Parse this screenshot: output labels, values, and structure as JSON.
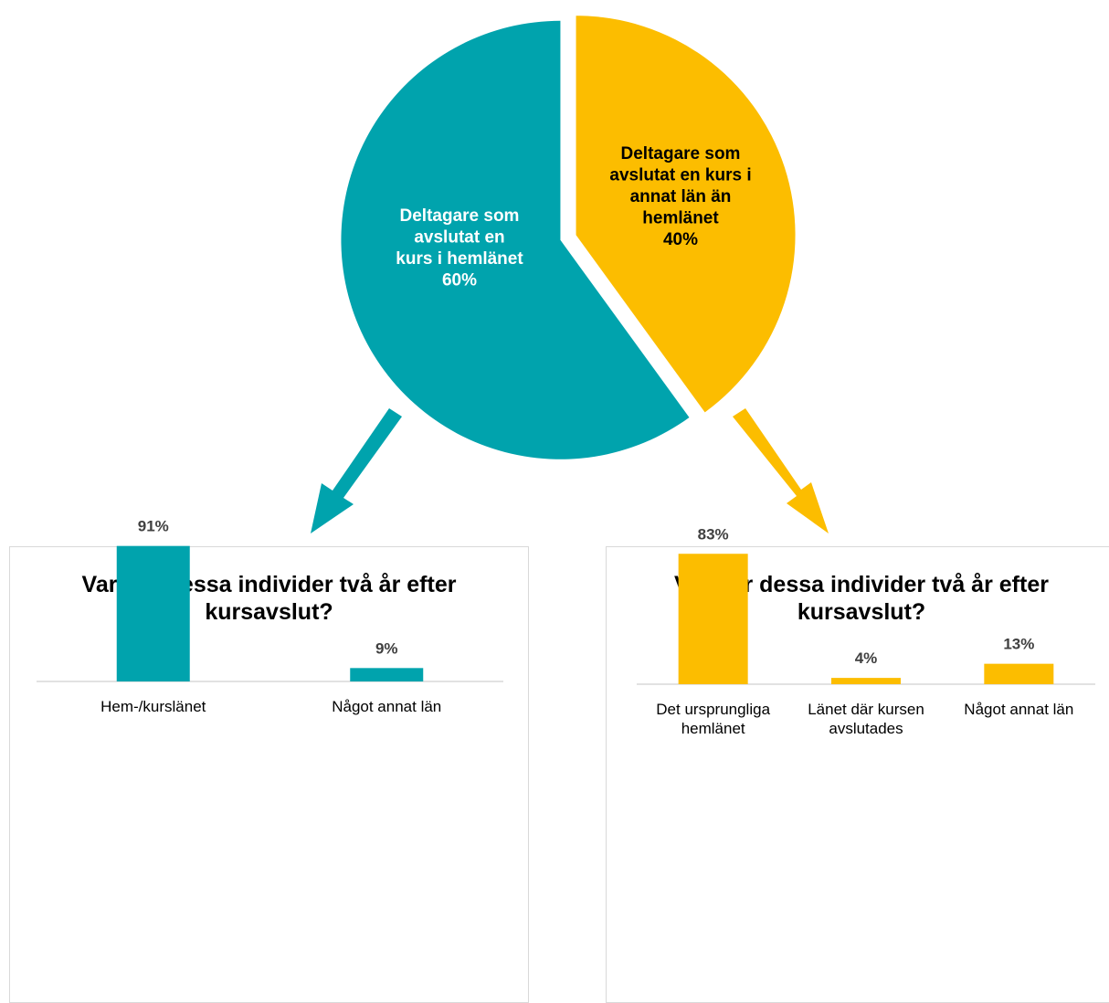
{
  "colors": {
    "teal": "#00A3AD",
    "yellow": "#FCBD00",
    "axis": "#d9d9d9"
  },
  "pie": {
    "chart_data": {
      "type": "pie",
      "slices": [
        {
          "label_lines": [
            "Deltagare som",
            "avslutat en",
            "kurs i hemlänet"
          ],
          "value_label": "60%",
          "value": 60
        },
        {
          "label_lines": [
            "Deltagare som",
            "avslutat en kurs i",
            "annat län än",
            "hemlänet"
          ],
          "value_label": "40%",
          "value": 40
        }
      ]
    }
  },
  "left_chart": {
    "title": "Var bor dessa individer två år efter kursavslut?",
    "chart_data": {
      "type": "bar",
      "categories": [
        [
          "Hem-/kurslänet"
        ],
        [
          "Något annat län"
        ]
      ],
      "values": [
        91,
        9
      ],
      "value_labels": [
        "91%",
        "9%"
      ],
      "ylim": [
        0,
        100
      ]
    }
  },
  "right_chart": {
    "title": "Var bor dessa individer två år efter kursavslut?",
    "chart_data": {
      "type": "bar",
      "categories": [
        [
          "Det ursprungliga",
          "hemlänet"
        ],
        [
          "Länet där kursen",
          "avslutades"
        ],
        [
          "Något annat län"
        ]
      ],
      "values": [
        83,
        4,
        13
      ],
      "value_labels": [
        "83%",
        "4%",
        "13%"
      ],
      "ylim": [
        0,
        100
      ]
    }
  }
}
